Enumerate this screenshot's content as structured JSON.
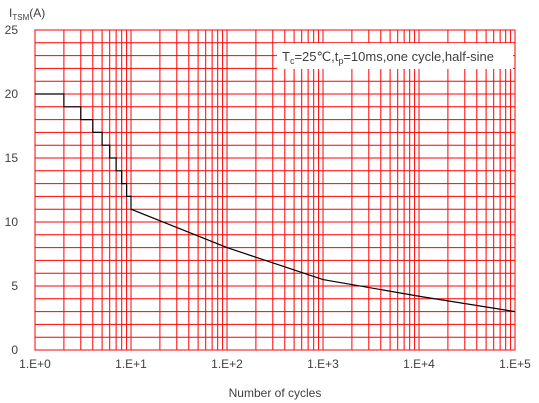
{
  "chart_data": {
    "type": "line",
    "x_scale": "log",
    "xlim": [
      1,
      100000
    ],
    "ylim": [
      0,
      25
    ],
    "grid": true,
    "colors": {
      "grid": "#ff0000",
      "line": "#000000",
      "text": "#404040"
    },
    "xlabel": "Number of cycles",
    "ylabel": {
      "main": "I",
      "sub": "TSM",
      "unit": "(A)"
    },
    "x_tick_labels": [
      "1.E+0",
      "1.E+1",
      "1.E+2",
      "1.E+3",
      "1.E+4",
      "1.E+5"
    ],
    "y_tick_labels": [
      "0",
      "5",
      "10",
      "15",
      "20",
      "25"
    ],
    "annotation": {
      "t": "T",
      "c": "c",
      "mid": "=25℃,t",
      "p": "p",
      "tail": "=10ms,one cycle,half-sine"
    },
    "series": [
      {
        "x": [
          1,
          2,
          2,
          3,
          3,
          4,
          4,
          5,
          5,
          6,
          6,
          7,
          7,
          8,
          8,
          9,
          9,
          10,
          10,
          100,
          1000,
          10000,
          100000
        ],
        "y": [
          20,
          20,
          19,
          19,
          18,
          18,
          17,
          17,
          16,
          16,
          15,
          15,
          14,
          14,
          13,
          13,
          12,
          12,
          11,
          8,
          5.5,
          4.2,
          3
        ]
      }
    ]
  }
}
